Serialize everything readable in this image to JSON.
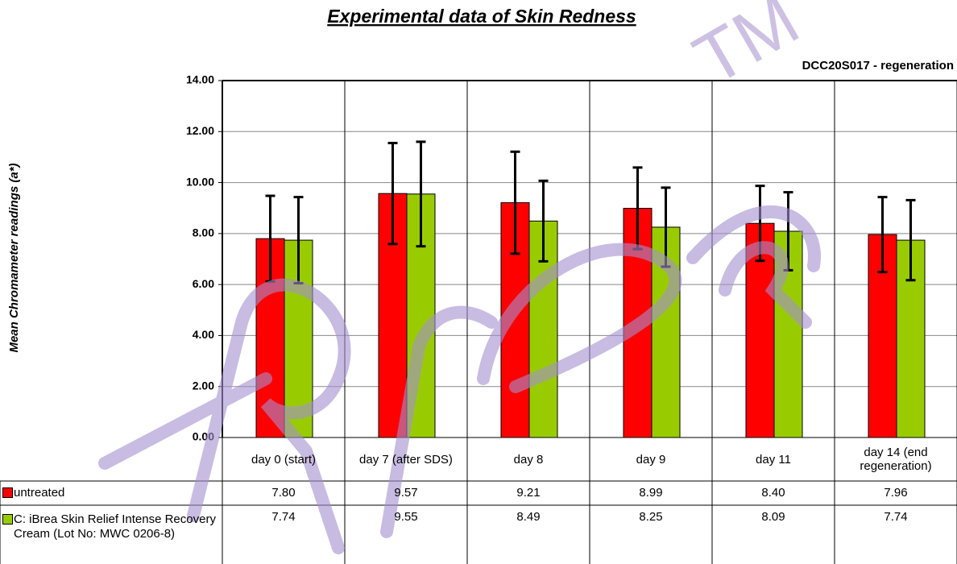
{
  "chart_data": {
    "type": "bar",
    "title": "Experimental data of Skin Redness",
    "subtitle": "DCC20S017 - regeneration",
    "y_label": "Mean Chromameter readings (a*)",
    "watermark": "TM",
    "categories": [
      "day 0 (start)",
      "day 7 (after SDS)",
      "day 8",
      "day 9",
      "day 11",
      "day 14 (end regeneration)"
    ],
    "series": [
      {
        "name": "untreated",
        "color": "#ff0000",
        "values": [
          7.8,
          9.57,
          9.21,
          8.99,
          8.4,
          7.96
        ],
        "value_labels": [
          "7.80",
          "9.57",
          "9.21",
          "8.99",
          "8.40",
          "7.96"
        ],
        "errors": [
          1.68,
          1.98,
          2.0,
          1.6,
          1.47,
          1.47
        ]
      },
      {
        "name": "C: iBrea Skin Relief Intense Recovery Cream (Lot No: MWC 0206-8)",
        "color": "#99cc00",
        "values": [
          7.74,
          9.55,
          8.49,
          8.25,
          8.09,
          7.74
        ],
        "value_labels": [
          "7.74",
          "9.55",
          "8.49",
          "8.25",
          "8.09",
          "7.74"
        ],
        "errors": [
          1.69,
          2.05,
          1.58,
          1.55,
          1.53,
          1.57
        ]
      }
    ],
    "ylim": [
      0,
      14
    ],
    "yticks": [
      {
        "value": 0,
        "label": "0.00"
      },
      {
        "value": 2,
        "label": "2.00"
      },
      {
        "value": 4,
        "label": "4.00"
      },
      {
        "value": 6,
        "label": "6.00"
      },
      {
        "value": 8,
        "label": "8.00"
      },
      {
        "value": 10,
        "label": "10.00"
      },
      {
        "value": 12,
        "label": "12.00"
      },
      {
        "value": 14,
        "label": "14.00"
      }
    ],
    "grid": true
  }
}
